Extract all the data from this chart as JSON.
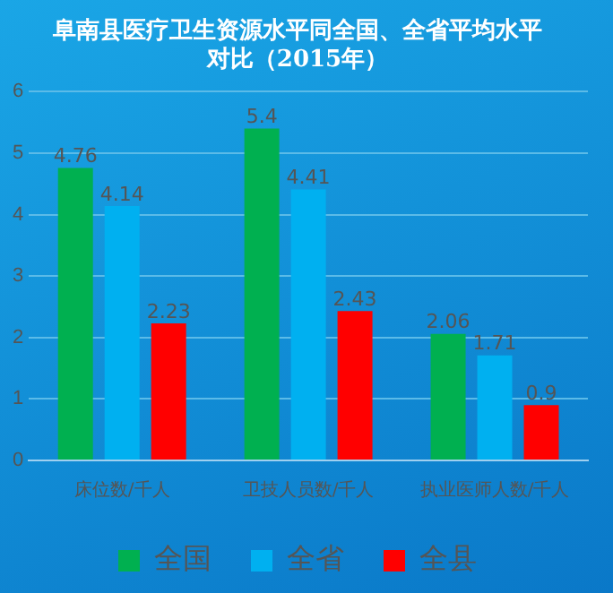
{
  "chart_data": {
    "type": "bar",
    "title": "阜南县医疗卫生资源水平同全国、全省平均水平对比（2015年）",
    "categories": [
      "床位数/千人",
      "卫技人员数/千人",
      "执业医师人数/千人"
    ],
    "series": [
      {
        "name": "全国",
        "color": "#00b050",
        "values": [
          4.76,
          5.4,
          2.06
        ]
      },
      {
        "name": "全省",
        "color": "#00b0f0",
        "values": [
          4.14,
          4.41,
          1.71
        ]
      },
      {
        "name": "全县",
        "color": "#ff0000",
        "values": [
          2.23,
          2.43,
          0.9
        ]
      }
    ],
    "ylim": [
      0,
      6
    ],
    "yticks": [
      0,
      1,
      2,
      3,
      4,
      5,
      6
    ],
    "grid": "y",
    "legend": "bottom",
    "data_labels": true
  }
}
